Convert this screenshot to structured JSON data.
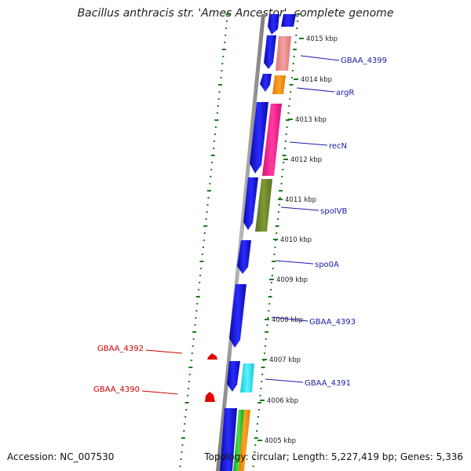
{
  "title": "Bacillus anthracis str. 'Ames Ancestor', complete genome",
  "accession": "Accession: NC_007530",
  "summary": "Topology: circular; Length: 5,227,419 bp; Genes: 5,336",
  "colors": {
    "backbone": "#8c8c8c",
    "forward_strand": "#1f1fe6",
    "reverse_strand": "#e60000",
    "gc_ticks": "#1f7a1f",
    "label_forward": "#1a1aa8",
    "label_reverse": "#cc0000"
  },
  "ruler": [
    {
      "label": "4015 kbp"
    },
    {
      "label": "4014 kbp"
    },
    {
      "label": "4013 kbp"
    },
    {
      "label": "4012 kbp"
    },
    {
      "label": "4011 kbp"
    },
    {
      "label": "4010 kbp"
    },
    {
      "label": "4009 kbp"
    },
    {
      "label": "4008 kbp"
    },
    {
      "label": "4007 kbp"
    },
    {
      "label": "4006 kbp"
    },
    {
      "label": "4005 kbp"
    }
  ],
  "gene_labels": [
    {
      "text": "GBAA_4399",
      "strand": "forward"
    },
    {
      "text": "argR",
      "strand": "forward"
    },
    {
      "text": "recN",
      "strand": "forward"
    },
    {
      "text": "spoIVB",
      "strand": "forward"
    },
    {
      "text": "spo0A",
      "strand": "forward"
    },
    {
      "text": "GBAA_4393",
      "strand": "forward"
    },
    {
      "text": "GBAA_4391",
      "strand": "forward"
    },
    {
      "text": "GBAA_4392",
      "strand": "reverse"
    },
    {
      "text": "GBAA_4390",
      "strand": "reverse"
    }
  ]
}
